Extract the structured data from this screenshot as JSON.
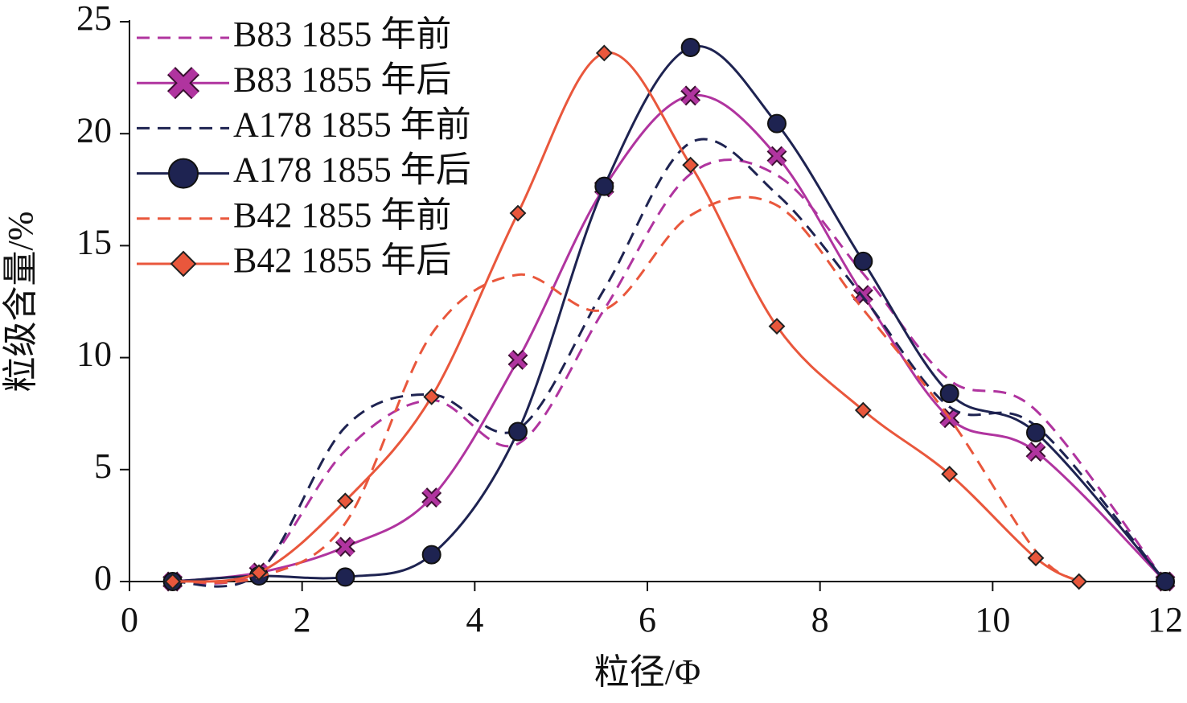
{
  "chart_data": {
    "type": "line",
    "xlabel": "粒径/Φ",
    "ylabel": "粒级含量/%",
    "xlim": [
      0,
      12
    ],
    "xticks": [
      0,
      2,
      4,
      6,
      8,
      10,
      12
    ],
    "ylim": [
      0,
      25
    ],
    "yticks": [
      0,
      5,
      10,
      15,
      20,
      25
    ],
    "legend": "upper left",
    "grid": false,
    "smooth": true,
    "series": [
      {
        "name": "B83 1855 年前",
        "color": "#b0349f",
        "dashed": true,
        "marker": "none",
        "x": [
          0.5,
          1.5,
          2.5,
          3.5,
          4.5,
          5.5,
          6.5,
          7.5,
          8.5,
          9.5,
          10.5,
          12
        ],
        "values": [
          0,
          0.5,
          5.85,
          8.1,
          6.15,
          12.15,
          18.2,
          18.15,
          13.75,
          9.0,
          7.65,
          0
        ]
      },
      {
        "name": "B83 1855 年后",
        "color": "#b0349f",
        "dashed": false,
        "marker": "x",
        "x": [
          0.5,
          1.5,
          2.5,
          3.5,
          4.5,
          5.5,
          6.5,
          7.5,
          8.5,
          9.5,
          10.5,
          12
        ],
        "values": [
          0,
          0.4,
          1.55,
          3.75,
          9.9,
          17.6,
          21.7,
          19.0,
          12.8,
          7.3,
          5.8,
          0
        ]
      },
      {
        "name": "A178 1855 年前",
        "color": "#1e2351",
        "dashed": true,
        "marker": "none",
        "x": [
          0.5,
          1.5,
          2.5,
          3.5,
          4.5,
          5.5,
          6.5,
          7.5,
          8.5,
          9.5,
          10.5,
          12
        ],
        "values": [
          0,
          0.4,
          6.9,
          8.35,
          6.8,
          13.05,
          19.6,
          17.3,
          12.7,
          7.8,
          6.95,
          0
        ]
      },
      {
        "name": "A178 1855 年后",
        "color": "#1e2351",
        "dashed": false,
        "marker": "circle",
        "x": [
          0.5,
          1.5,
          2.5,
          3.5,
          4.5,
          5.5,
          6.5,
          7.5,
          8.5,
          9.5,
          10.5,
          12
        ],
        "values": [
          0,
          0.25,
          0.2,
          1.2,
          6.7,
          17.65,
          23.85,
          20.45,
          14.3,
          8.4,
          6.65,
          0
        ]
      },
      {
        "name": "B42 1855 年前",
        "color": "#e9573c",
        "dashed": true,
        "marker": "none",
        "x": [
          0.5,
          1.5,
          2.5,
          3.5,
          4.5,
          5.5,
          6.5,
          7.5,
          8.5,
          9.5,
          10.5,
          11
        ],
        "values": [
          0,
          0.2,
          2.6,
          11.05,
          13.7,
          12.15,
          16.35,
          16.8,
          12.15,
          7.3,
          1.35,
          0
        ]
      },
      {
        "name": "B42 1855 年后",
        "color": "#e9573c",
        "dashed": false,
        "marker": "diamond",
        "x": [
          0.5,
          1.5,
          2.5,
          3.5,
          4.5,
          5.5,
          6.5,
          7.5,
          8.5,
          9.5,
          10.5,
          11
        ],
        "values": [
          0,
          0.4,
          3.6,
          8.25,
          16.45,
          23.6,
          18.6,
          11.4,
          7.65,
          4.8,
          1.05,
          0
        ]
      }
    ]
  }
}
